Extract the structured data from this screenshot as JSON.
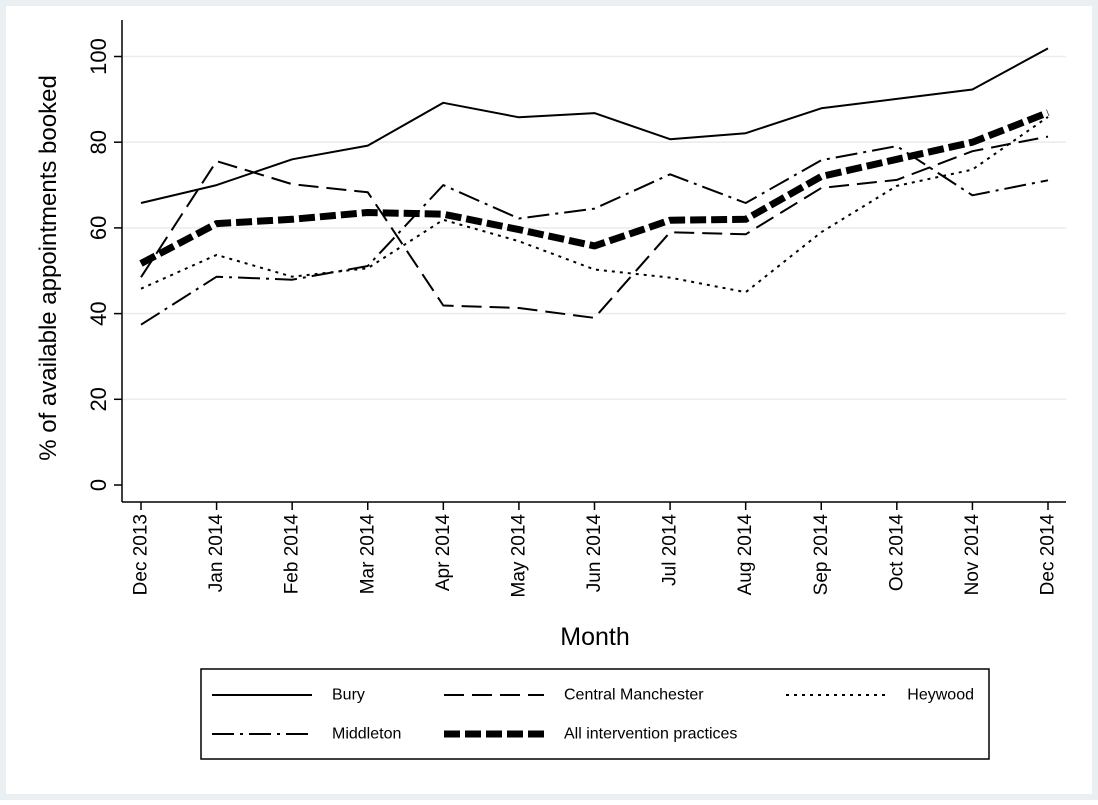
{
  "chart_data": {
    "type": "line",
    "xlabel": "Month",
    "ylabel": "% of available appointments booked",
    "ylim": [
      0,
      100
    ],
    "yticks": [
      0,
      20,
      40,
      60,
      80,
      100
    ],
    "grid": true,
    "legend_position": "bottom",
    "categories": [
      "Dec 2013",
      "Jan 2014",
      "Feb 2014",
      "Mar 2014",
      "Apr 2014",
      "May 2014",
      "Jun 2014",
      "Jul 2014",
      "Aug 2014",
      "Sep 2014",
      "Oct 2014",
      "Nov 2014",
      "Dec 2014"
    ],
    "series": [
      {
        "name": "Bury",
        "style": "solid",
        "values": [
          65.8,
          70.0,
          76.0,
          79.2,
          89.2,
          85.8,
          86.8,
          80.7,
          82.1,
          87.9,
          90.1,
          92.3,
          101.9
        ]
      },
      {
        "name": "Central Manchester",
        "style": "dashed",
        "values": [
          48.5,
          75.6,
          70.2,
          68.3,
          41.9,
          41.3,
          39.0,
          59.0,
          58.5,
          69.3,
          71.2,
          77.9,
          81.3
        ]
      },
      {
        "name": "Heywood",
        "style": "dotted",
        "values": [
          45.8,
          53.7,
          48.6,
          50.6,
          61.9,
          56.9,
          50.3,
          48.4,
          45.0,
          59.0,
          69.8,
          73.6,
          85.9
        ]
      },
      {
        "name": "Middleton",
        "style": "dashdot",
        "values": [
          37.4,
          48.6,
          47.9,
          51.1,
          70.0,
          62.2,
          64.5,
          72.5,
          65.8,
          75.8,
          79.1,
          67.6,
          71.1
        ]
      },
      {
        "name": "All intervention practices",
        "style": "thickdash",
        "values": [
          51.7,
          61.0,
          62.0,
          63.6,
          63.2,
          59.6,
          55.8,
          61.8,
          62.0,
          72.0,
          76.0,
          80.0,
          86.9
        ]
      }
    ]
  }
}
